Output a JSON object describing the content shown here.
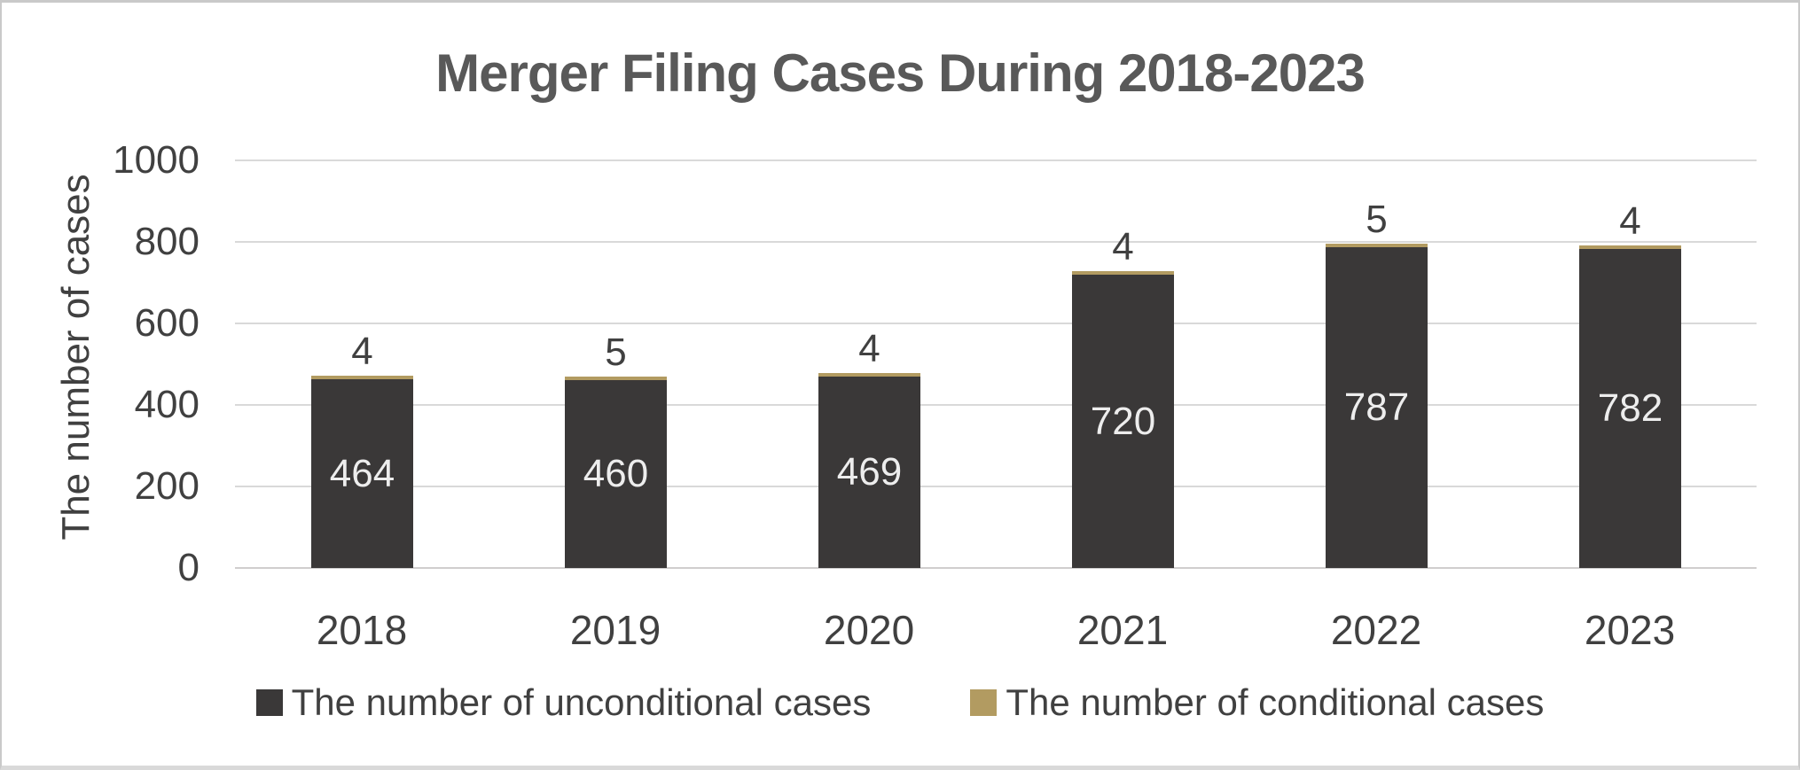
{
  "chart_data": {
    "type": "bar",
    "stacked": true,
    "title": "Merger Filing Cases During 2018-2023",
    "title_color": "#595959",
    "xlabel": "",
    "ylabel": "The number of cases",
    "categories": [
      "2018",
      "2019",
      "2020",
      "2021",
      "2022",
      "2023"
    ],
    "series": [
      {
        "name": "The number of unconditional cases",
        "color": "#3A3838",
        "values": [
          464,
          460,
          469,
          720,
          787,
          782
        ],
        "label_color": "#EDEDED",
        "label_position": "center"
      },
      {
        "name": "The number of conditional cases",
        "color": "#B29B61",
        "values": [
          4,
          5,
          4,
          4,
          5,
          4
        ],
        "label_color": "#404040",
        "label_position": "outside-end"
      }
    ],
    "ylim": [
      0,
      1000
    ],
    "yticks": [
      0,
      200,
      400,
      600,
      800,
      1000
    ],
    "grid": "horizontal",
    "gridline_color": "#D9D9D9",
    "axis_line_color": "#D0CECE",
    "axis_text_color": "#404040",
    "legend_position": "bottom"
  }
}
